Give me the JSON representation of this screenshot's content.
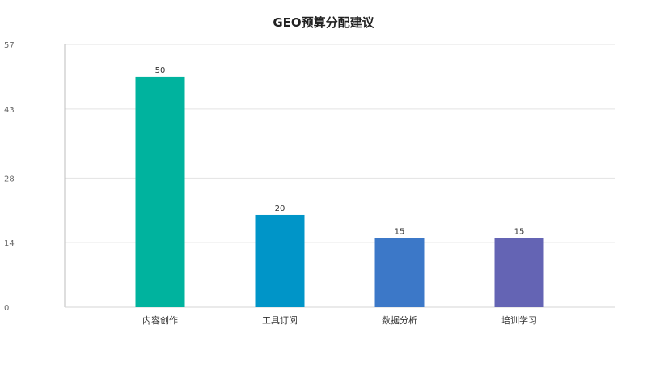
{
  "chart_data": {
    "type": "bar",
    "title": "GEO预算分配建议",
    "categories": [
      "内容创作",
      "工具订阅",
      "数据分析",
      "培训学习"
    ],
    "values": [
      50,
      20,
      15,
      15
    ],
    "colors": [
      "#00b39e",
      "#0095c8",
      "#3c78c8",
      "#6464b4"
    ],
    "yticks": [
      "0",
      "14",
      "28",
      "43",
      "57"
    ],
    "ylim": [
      0,
      57
    ],
    "grid": true,
    "legend": "none"
  }
}
